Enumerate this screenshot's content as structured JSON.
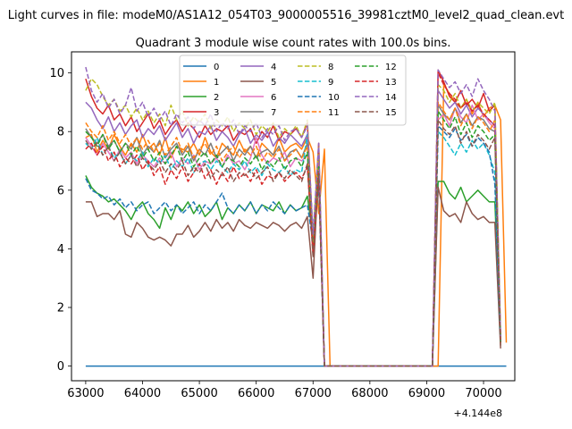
{
  "suptitle": "Light curves in file: modeM0/AS1A12_054T03_9000005516_39981cztM0_level2_quad_clean.evt",
  "chart_data": {
    "type": "line",
    "title": "Quadrant 3 module wise count rates with 100.0s bins.",
    "xlabel": "",
    "ylabel": "",
    "x_offset_label": "+4.144e8",
    "xlim": [
      62750,
      70550
    ],
    "ylim": [
      -0.5,
      10.72
    ],
    "xticks": [
      63000,
      64000,
      65000,
      66000,
      67000,
      68000,
      69000,
      70000
    ],
    "yticks": [
      0,
      2,
      4,
      6,
      8,
      10
    ],
    "grid": false,
    "legend": {
      "placement": "top-center",
      "ncol": 4
    },
    "x_start": 63000,
    "x_step": 100,
    "series": [
      {
        "name": "0",
        "color": "#1f77b4",
        "dash": "solid",
        "values": [
          0
        ]
      },
      {
        "name": "1",
        "color": "#ff7f0e",
        "dash": "solid",
        "values": [
          7.8,
          7.9,
          7.3,
          7.7,
          7.4,
          7.9,
          7.5,
          7.2,
          7.6,
          7.3,
          7.9,
          7.4,
          7.6,
          7.2,
          7.8,
          7.1,
          7.5,
          7.4,
          7.3,
          7.6,
          7.2,
          7.8,
          7.3,
          7.1,
          7.6,
          7.4,
          7.2,
          7.7,
          7.3,
          7.5,
          7.1,
          7.6,
          7.4,
          7.2,
          7.8,
          7.3,
          7.5,
          7.6,
          7.4,
          7.8,
          7.3,
          5.2,
          7.4,
          0,
          0,
          0,
          0,
          0,
          0,
          0,
          0,
          0,
          0,
          0,
          0,
          0,
          0,
          0,
          0,
          0,
          0,
          0,
          0,
          9.6,
          9.3,
          9.0,
          8.8,
          9.1,
          8.6,
          9.0,
          8.5,
          8.8,
          8.9,
          8.4,
          0.8
        ]
      },
      {
        "name": "2",
        "color": "#2ca02c",
        "dash": "solid",
        "values": [
          6.5,
          6.1,
          5.9,
          5.8,
          5.6,
          5.7,
          5.5,
          5.3,
          5.0,
          5.4,
          5.6,
          5.2,
          5.0,
          4.7,
          5.4,
          5.0,
          5.5,
          5.3,
          5.6,
          5.2,
          5.5,
          5.1,
          5.3,
          5.6,
          5.0,
          5.4,
          5.2,
          5.5,
          5.3,
          5.6,
          5.2,
          5.5,
          5.4,
          5.3,
          5.6,
          5.2,
          5.5,
          5.3,
          5.4,
          5.8,
          4.4,
          6.5,
          0,
          0,
          0,
          0,
          0,
          0,
          0,
          0,
          0,
          0,
          0,
          0,
          0,
          0,
          0,
          0,
          0,
          0,
          0,
          0,
          6.3,
          6.3,
          5.9,
          5.7,
          6.1,
          5.6,
          5.8,
          6.0,
          5.8,
          5.6,
          5.6,
          1.0
        ]
      },
      {
        "name": "3",
        "color": "#d62728",
        "dash": "solid",
        "values": [
          9.8,
          9.2,
          8.8,
          8.6,
          8.9,
          8.4,
          8.6,
          8.2,
          8.5,
          8.0,
          8.3,
          8.6,
          8.1,
          8.4,
          7.9,
          8.2,
          8.4,
          8.0,
          8.3,
          8.1,
          7.8,
          8.2,
          7.9,
          8.1,
          8.0,
          8.2,
          7.7,
          8.0,
          7.9,
          8.1,
          7.6,
          8.0,
          7.8,
          8.2,
          7.7,
          8.0,
          7.9,
          8.1,
          7.8,
          8.3,
          4.3,
          7.6,
          0,
          0,
          0,
          0,
          0,
          0,
          0,
          0,
          0,
          0,
          0,
          0,
          0,
          0,
          0,
          0,
          0,
          0,
          0,
          0,
          10.1,
          9.7,
          9.2,
          9.0,
          9.4,
          8.9,
          9.1,
          8.8,
          9.3,
          8.7,
          8.9,
          1.0
        ]
      },
      {
        "name": "4",
        "color": "#9467bd",
        "dash": "solid",
        "values": [
          9.0,
          8.8,
          8.4,
          8.1,
          8.5,
          8.0,
          8.3,
          7.9,
          8.2,
          8.4,
          7.8,
          8.1,
          7.9,
          8.2,
          7.7,
          8.0,
          8.3,
          7.8,
          8.1,
          7.6,
          8.0,
          7.9,
          8.2,
          7.7,
          8.0,
          7.8,
          7.5,
          7.9,
          8.1,
          7.6,
          7.9,
          7.7,
          8.0,
          7.5,
          7.8,
          7.6,
          7.9,
          7.7,
          7.5,
          7.9,
          4.0,
          7.2,
          0,
          0,
          0,
          0,
          0,
          0,
          0,
          0,
          0,
          0,
          0,
          0,
          0,
          0,
          0,
          0,
          0,
          0,
          0,
          0,
          9.4,
          9.1,
          8.8,
          9.0,
          8.6,
          8.9,
          8.5,
          8.8,
          8.6,
          8.4,
          8.2,
          0.9
        ]
      },
      {
        "name": "5",
        "color": "#8c564b",
        "dash": "solid",
        "values": [
          5.6,
          5.6,
          5.1,
          5.2,
          5.2,
          5.0,
          5.3,
          4.5,
          4.4,
          4.9,
          4.7,
          4.4,
          4.3,
          4.4,
          4.3,
          4.1,
          4.5,
          4.5,
          4.8,
          4.4,
          4.6,
          4.9,
          4.6,
          5.0,
          4.7,
          4.9,
          4.6,
          5.0,
          4.8,
          4.7,
          4.9,
          4.8,
          4.7,
          4.9,
          4.8,
          4.6,
          4.8,
          4.9,
          4.7,
          5.1,
          3.0,
          6.9,
          0,
          0,
          0,
          0,
          0,
          0,
          0,
          0,
          0,
          0,
          0,
          0,
          0,
          0,
          0,
          0,
          0,
          0,
          0,
          0,
          6.1,
          5.3,
          5.1,
          5.2,
          4.9,
          5.6,
          5.2,
          5.0,
          5.1,
          4.9,
          4.9,
          0.6
        ]
      },
      {
        "name": "6",
        "color": "#e377c2",
        "dash": "solid",
        "values": [
          7.8,
          7.5,
          7.2,
          7.6,
          7.3,
          7.0,
          7.4,
          7.1,
          7.3,
          6.9,
          7.2,
          7.0,
          6.8,
          7.1,
          6.9,
          7.3,
          6.8,
          7.1,
          6.9,
          7.2,
          6.7,
          7.0,
          6.9,
          7.1,
          6.8,
          7.2,
          6.9,
          7.0,
          6.7,
          7.1,
          7.8,
          7.2,
          6.9,
          7.1,
          7.0,
          7.3,
          6.8,
          7.1,
          7.0,
          7.2,
          4.1,
          6.8,
          0,
          0,
          0,
          0,
          0,
          0,
          0,
          0,
          0,
          0,
          0,
          0,
          0,
          0,
          0,
          0,
          0,
          0,
          0,
          0,
          8.4,
          8.6,
          8.2,
          8.8,
          8.5,
          8.3,
          8.9,
          8.4,
          8.6,
          8.3,
          8.1,
          0.9
        ]
      },
      {
        "name": "7",
        "color": "#7f7f7f",
        "dash": "solid",
        "values": [
          8.1,
          7.8,
          7.6,
          7.9,
          7.5,
          7.7,
          7.3,
          7.6,
          7.4,
          7.8,
          7.2,
          7.5,
          7.3,
          7.7,
          7.1,
          7.4,
          7.6,
          7.2,
          7.5,
          7.0,
          7.4,
          7.2,
          7.6,
          7.1,
          7.3,
          7.5,
          7.0,
          7.4,
          7.2,
          7.5,
          7.1,
          7.3,
          7.4,
          7.2,
          7.5,
          7.0,
          7.3,
          7.4,
          7.1,
          7.6,
          4.2,
          7.1,
          0,
          0,
          0,
          0,
          0,
          0,
          0,
          0,
          0,
          0,
          0,
          0,
          0,
          0,
          0,
          0,
          0,
          0,
          0,
          0,
          8.9,
          8.6,
          8.4,
          8.8,
          8.3,
          8.6,
          8.2,
          8.5,
          8.4,
          8.1,
          8.0,
          0.9
        ]
      },
      {
        "name": "8",
        "color": "#bcbd22",
        "dash": "dashed",
        "values": [
          9.4,
          9.8,
          9.6,
          9.2,
          8.9,
          9.1,
          8.7,
          8.9,
          8.5,
          8.8,
          8.4,
          8.7,
          8.3,
          8.6,
          8.2,
          8.9,
          8.4,
          8.7,
          8.2,
          8.5,
          8.3,
          8.6,
          8.1,
          8.4,
          8.2,
          8.5,
          8.0,
          8.3,
          8.1,
          8.4,
          7.9,
          8.2,
          8.0,
          8.3,
          7.8,
          8.1,
          7.9,
          8.2,
          7.8,
          8.4,
          4.4,
          7.5,
          0,
          0,
          0,
          0,
          0,
          0,
          0,
          0,
          0,
          0,
          0,
          0,
          0,
          0,
          0,
          0,
          0,
          0,
          0,
          0,
          9.6,
          9.4,
          9.0,
          9.3,
          8.8,
          9.1,
          8.7,
          9.0,
          8.8,
          8.6,
          9.0,
          1.0
        ]
      },
      {
        "name": "9",
        "color": "#17becf",
        "dash": "dashed",
        "values": [
          7.6,
          7.4,
          7.8,
          7.2,
          7.5,
          7.1,
          7.3,
          6.9,
          7.2,
          7.0,
          7.3,
          6.8,
          7.1,
          6.9,
          7.2,
          6.7,
          7.0,
          6.8,
          7.1,
          6.6,
          6.9,
          7.0,
          6.7,
          7.0,
          6.8,
          6.6,
          6.9,
          6.7,
          7.0,
          6.6,
          6.8,
          6.5,
          6.9,
          6.7,
          6.6,
          6.8,
          6.5,
          6.7,
          6.6,
          7.9,
          4.1,
          6.9,
          0,
          0,
          0,
          0,
          0,
          0,
          0,
          0,
          0,
          0,
          0,
          0,
          0,
          0,
          0,
          0,
          0,
          0,
          0,
          0,
          8.0,
          7.8,
          7.5,
          7.2,
          7.6,
          7.3,
          7.7,
          7.4,
          7.6,
          7.2,
          6.6,
          0.8
        ]
      },
      {
        "name": "10",
        "color": "#1f77b4",
        "dash": "dashed",
        "values": [
          6.4,
          6.0,
          5.9,
          5.7,
          5.8,
          5.5,
          5.7,
          5.4,
          5.6,
          5.3,
          5.5,
          5.6,
          5.2,
          5.4,
          5.6,
          5.3,
          5.5,
          5.2,
          5.4,
          5.6,
          5.2,
          5.5,
          5.3,
          5.6,
          5.9,
          5.4,
          5.2,
          5.5,
          5.3,
          5.6,
          5.2,
          5.5,
          5.3,
          5.6,
          5.4,
          5.2,
          5.5,
          5.3,
          5.4,
          5.5,
          4.2,
          6.2,
          0,
          0,
          0,
          0,
          0,
          0,
          0,
          0,
          0,
          0,
          0,
          0,
          0,
          0,
          0,
          0,
          0,
          0,
          0,
          0,
          8.2,
          8.0,
          7.8,
          8.1,
          7.7,
          7.9,
          7.5,
          7.8,
          7.6,
          7.3,
          6.2,
          0.8
        ]
      },
      {
        "name": "11",
        "color": "#ff7f0e",
        "dash": "dashed",
        "values": [
          8.3,
          8.0,
          7.8,
          8.2,
          7.7,
          8.0,
          7.6,
          7.9,
          7.5,
          7.8,
          7.4,
          7.7,
          7.3,
          7.6,
          7.2,
          7.5,
          7.8,
          7.3,
          7.6,
          7.1,
          7.4,
          7.6,
          7.2,
          7.5,
          7.0,
          7.3,
          7.5,
          7.1,
          7.4,
          7.2,
          7.5,
          7.0,
          7.3,
          7.1,
          7.4,
          7.0,
          7.2,
          7.4,
          7.1,
          7.5,
          4.0,
          7.0,
          0,
          0,
          0,
          0,
          0,
          0,
          0,
          0,
          0,
          0,
          0,
          0,
          0,
          0,
          0,
          0,
          0,
          0,
          0,
          0,
          9.0,
          8.7,
          8.4,
          8.8,
          8.2,
          8.6,
          8.1,
          8.5,
          8.3,
          8.0,
          8.4,
          0.9
        ]
      },
      {
        "name": "12",
        "color": "#2ca02c",
        "dash": "dashed",
        "values": [
          8.0,
          7.8,
          7.5,
          7.9,
          7.4,
          7.7,
          7.3,
          7.6,
          7.2,
          7.5,
          7.1,
          7.4,
          7.0,
          7.3,
          6.9,
          7.2,
          7.5,
          7.0,
          7.3,
          6.8,
          7.1,
          7.3,
          6.9,
          7.2,
          6.8,
          7.1,
          7.0,
          6.8,
          7.1,
          6.9,
          7.2,
          6.7,
          7.0,
          6.8,
          7.1,
          6.7,
          7.0,
          7.1,
          6.8,
          7.3,
          3.9,
          6.8,
          0,
          0,
          0,
          0,
          0,
          0,
          0,
          0,
          0,
          0,
          0,
          0,
          0,
          0,
          0,
          0,
          0,
          0,
          0,
          0,
          8.7,
          8.4,
          8.1,
          8.5,
          7.9,
          8.3,
          7.8,
          8.2,
          8.0,
          7.7,
          7.9,
          0.8
        ]
      },
      {
        "name": "13",
        "color": "#d62728",
        "dash": "dashed",
        "values": [
          7.4,
          7.6,
          7.2,
          7.5,
          7.0,
          7.3,
          6.8,
          7.1,
          6.9,
          7.2,
          6.7,
          7.0,
          6.5,
          6.8,
          6.2,
          6.7,
          6.4,
          6.8,
          6.3,
          6.6,
          6.9,
          6.4,
          6.7,
          6.2,
          6.6,
          6.3,
          6.8,
          6.4,
          6.6,
          6.3,
          6.7,
          6.2,
          6.5,
          6.4,
          6.6,
          6.3,
          6.5,
          6.6,
          6.4,
          6.8,
          3.8,
          6.6,
          0,
          0,
          0,
          0,
          0,
          0,
          0,
          0,
          0,
          0,
          0,
          0,
          0,
          0,
          0,
          0,
          0,
          0,
          0,
          0,
          10.0,
          9.6,
          9.3,
          9.1,
          8.8,
          9.0,
          8.7,
          8.9,
          8.6,
          8.4,
          8.2,
          0.8
        ]
      },
      {
        "name": "14",
        "color": "#9467bd",
        "dash": "dashed",
        "values": [
          10.2,
          9.4,
          9.0,
          9.3,
          8.8,
          9.1,
          8.6,
          8.9,
          9.5,
          8.7,
          9.0,
          8.5,
          8.8,
          8.4,
          8.7,
          8.2,
          8.6,
          8.3,
          8.5,
          8.1,
          8.4,
          8.2,
          8.6,
          8.0,
          8.3,
          8.1,
          8.4,
          7.9,
          8.2,
          8.0,
          8.3,
          7.8,
          8.1,
          7.9,
          8.2,
          7.7,
          8.0,
          8.1,
          7.8,
          8.2,
          4.5,
          7.6,
          0,
          0,
          0,
          0,
          0,
          0,
          0,
          0,
          0,
          0,
          0,
          0,
          0,
          0,
          0,
          0,
          0,
          0,
          0,
          0,
          10.1,
          9.8,
          9.5,
          9.7,
          9.3,
          9.6,
          9.2,
          9.8,
          9.4,
          9.1,
          8.7,
          1.0
        ]
      },
      {
        "name": "15",
        "color": "#8c564b",
        "dash": "dashed",
        "values": [
          7.7,
          7.4,
          7.6,
          7.2,
          7.5,
          7.0,
          7.3,
          6.9,
          7.2,
          6.8,
          7.1,
          6.9,
          6.7,
          7.0,
          6.6,
          6.9,
          6.7,
          7.0,
          6.5,
          6.8,
          6.6,
          6.9,
          6.4,
          6.7,
          6.5,
          6.8,
          6.3,
          6.6,
          6.5,
          6.7,
          6.4,
          6.6,
          6.8,
          6.3,
          6.6,
          6.4,
          6.7,
          6.5,
          6.3,
          6.9,
          3.7,
          6.5,
          0,
          0,
          0,
          0,
          0,
          0,
          0,
          0,
          0,
          0,
          0,
          0,
          0,
          0,
          0,
          0,
          0,
          0,
          0,
          0,
          8.4,
          8.1,
          7.9,
          8.2,
          7.6,
          8.0,
          7.5,
          7.9,
          7.7,
          7.4,
          7.8,
          0.7
        ]
      }
    ]
  }
}
